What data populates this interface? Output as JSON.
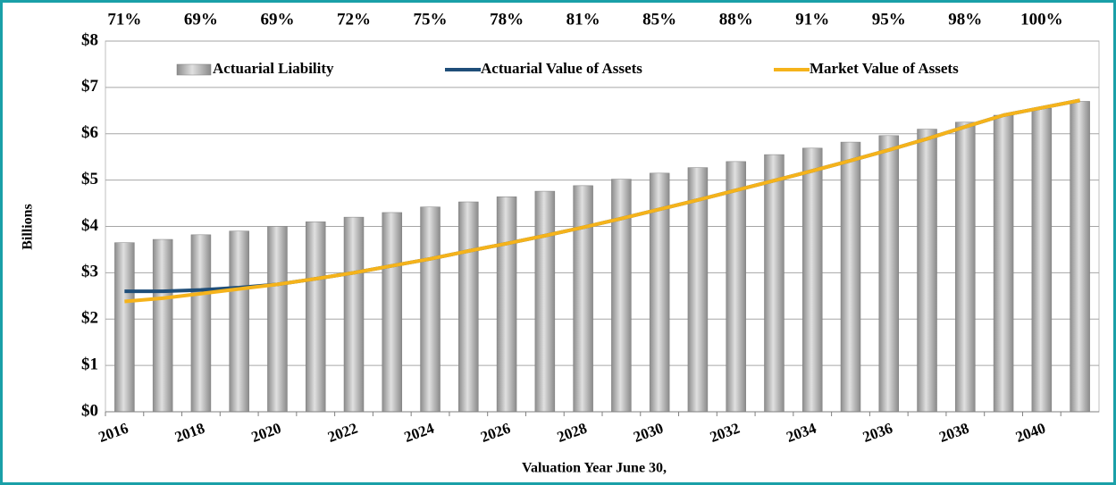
{
  "chart_data": {
    "type": "bar",
    "x_label": "Valuation Year June 30,",
    "y_label": "Billions",
    "categories": [
      "2016",
      null,
      "2018",
      null,
      "2020",
      null,
      "2022",
      null,
      "2024",
      null,
      "2026",
      null,
      "2028",
      null,
      "2030",
      null,
      "2032",
      null,
      "2034",
      null,
      "2036",
      null,
      "2038",
      null,
      "2040",
      null
    ],
    "ylim": [
      0,
      8
    ],
    "yticks": [
      {
        "value": 0,
        "label": "$0"
      },
      {
        "value": 1,
        "label": "$1"
      },
      {
        "value": 2,
        "label": "$2"
      },
      {
        "value": 3,
        "label": "$3"
      },
      {
        "value": 4,
        "label": "$4"
      },
      {
        "value": 5,
        "label": "$5"
      },
      {
        "value": 6,
        "label": "$6"
      },
      {
        "value": 7,
        "label": "$7"
      },
      {
        "value": 8,
        "label": "$8"
      }
    ],
    "grid": true,
    "legend": "top",
    "funded_ratio": {
      "values": [
        71,
        null,
        69,
        null,
        69,
        null,
        72,
        null,
        75,
        null,
        78,
        null,
        81,
        null,
        85,
        null,
        88,
        null,
        91,
        null,
        95,
        null,
        98,
        null,
        100,
        null
      ],
      "value_labels": [
        "71%",
        null,
        "69%",
        null,
        "69%",
        null,
        "72%",
        null,
        "75%",
        null,
        "78%",
        null,
        "81%",
        null,
        "85%",
        null,
        "88%",
        null,
        "91%",
        null,
        "95%",
        null,
        "98%",
        null,
        "100%",
        null
      ]
    },
    "series": [
      {
        "name": "Actuarial Liability",
        "type": "bar",
        "color": "#a6a6a6",
        "values": [
          3.65,
          3.72,
          3.82,
          3.9,
          4.0,
          4.1,
          4.2,
          4.3,
          4.42,
          4.53,
          4.64,
          4.76,
          4.88,
          5.02,
          5.15,
          5.27,
          5.4,
          5.55,
          5.69,
          5.82,
          5.96,
          6.1,
          6.25,
          6.4,
          6.55,
          6.7
        ]
      },
      {
        "name": "Actuarial Value of Assets",
        "type": "line",
        "color": "#1f4e79",
        "values": [
          2.6,
          2.6,
          2.63,
          2.68,
          2.75,
          2.87,
          3.0,
          3.15,
          3.3,
          3.47,
          3.63,
          3.8,
          3.98,
          4.17,
          4.37,
          4.57,
          4.78,
          4.99,
          5.2,
          5.42,
          5.65,
          5.89,
          6.15,
          6.4,
          6.56,
          6.72
        ]
      },
      {
        "name": "Market Value of Assets",
        "type": "line",
        "color": "#f5b31b",
        "values": [
          2.38,
          2.45,
          2.55,
          2.65,
          2.75,
          2.87,
          3.0,
          3.15,
          3.3,
          3.47,
          3.63,
          3.8,
          3.98,
          4.17,
          4.37,
          4.57,
          4.78,
          4.99,
          5.2,
          5.42,
          5.65,
          5.89,
          6.15,
          6.4,
          6.56,
          6.72
        ]
      }
    ]
  }
}
